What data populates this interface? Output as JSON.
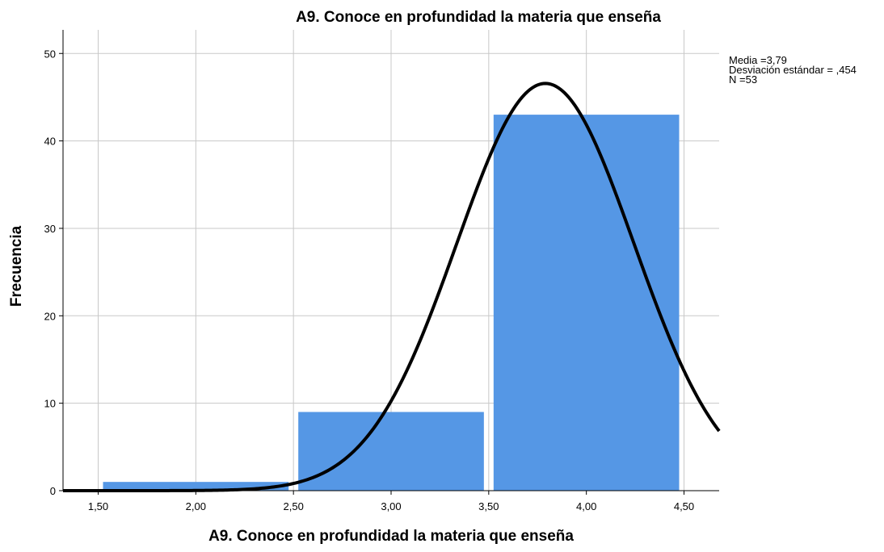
{
  "chart_data": {
    "type": "bar",
    "title": "A9. Conoce en profundidad la materia que enseña",
    "xlabel": "A9. Conoce en profundidad la materia que enseña",
    "ylabel": "Frecuencia",
    "bins": [
      {
        "from": 1.5,
        "to": 2.5,
        "value": 1
      },
      {
        "from": 2.5,
        "to": 3.5,
        "value": 9
      },
      {
        "from": 3.5,
        "to": 4.5,
        "value": 43
      }
    ],
    "x_ticks": [
      "1,50",
      "2,00",
      "2,50",
      "3,00",
      "3,50",
      "4,00",
      "4,50"
    ],
    "x_tick_values": [
      1.5,
      2.0,
      2.5,
      3.0,
      3.5,
      4.0,
      4.5
    ],
    "y_ticks": [
      "0",
      "10",
      "20",
      "30",
      "40",
      "50"
    ],
    "y_tick_values": [
      0,
      10,
      20,
      30,
      40,
      50
    ],
    "xlim": [
      1.32,
      4.68
    ],
    "ylim": [
      0,
      52.7
    ],
    "grid": true,
    "normal_curve": {
      "mean": 3.79,
      "sd": 0.454,
      "n": 53,
      "bin_width": 1.0
    },
    "legend": {
      "position": "top-right",
      "lines": [
        "Media =3,79",
        "Desviación estándar = ,454",
        "N =53"
      ]
    },
    "colors": {
      "bar": "#5597e5",
      "curve": "#000000",
      "grid": "#c8c8c8",
      "axis": "#000000"
    }
  }
}
